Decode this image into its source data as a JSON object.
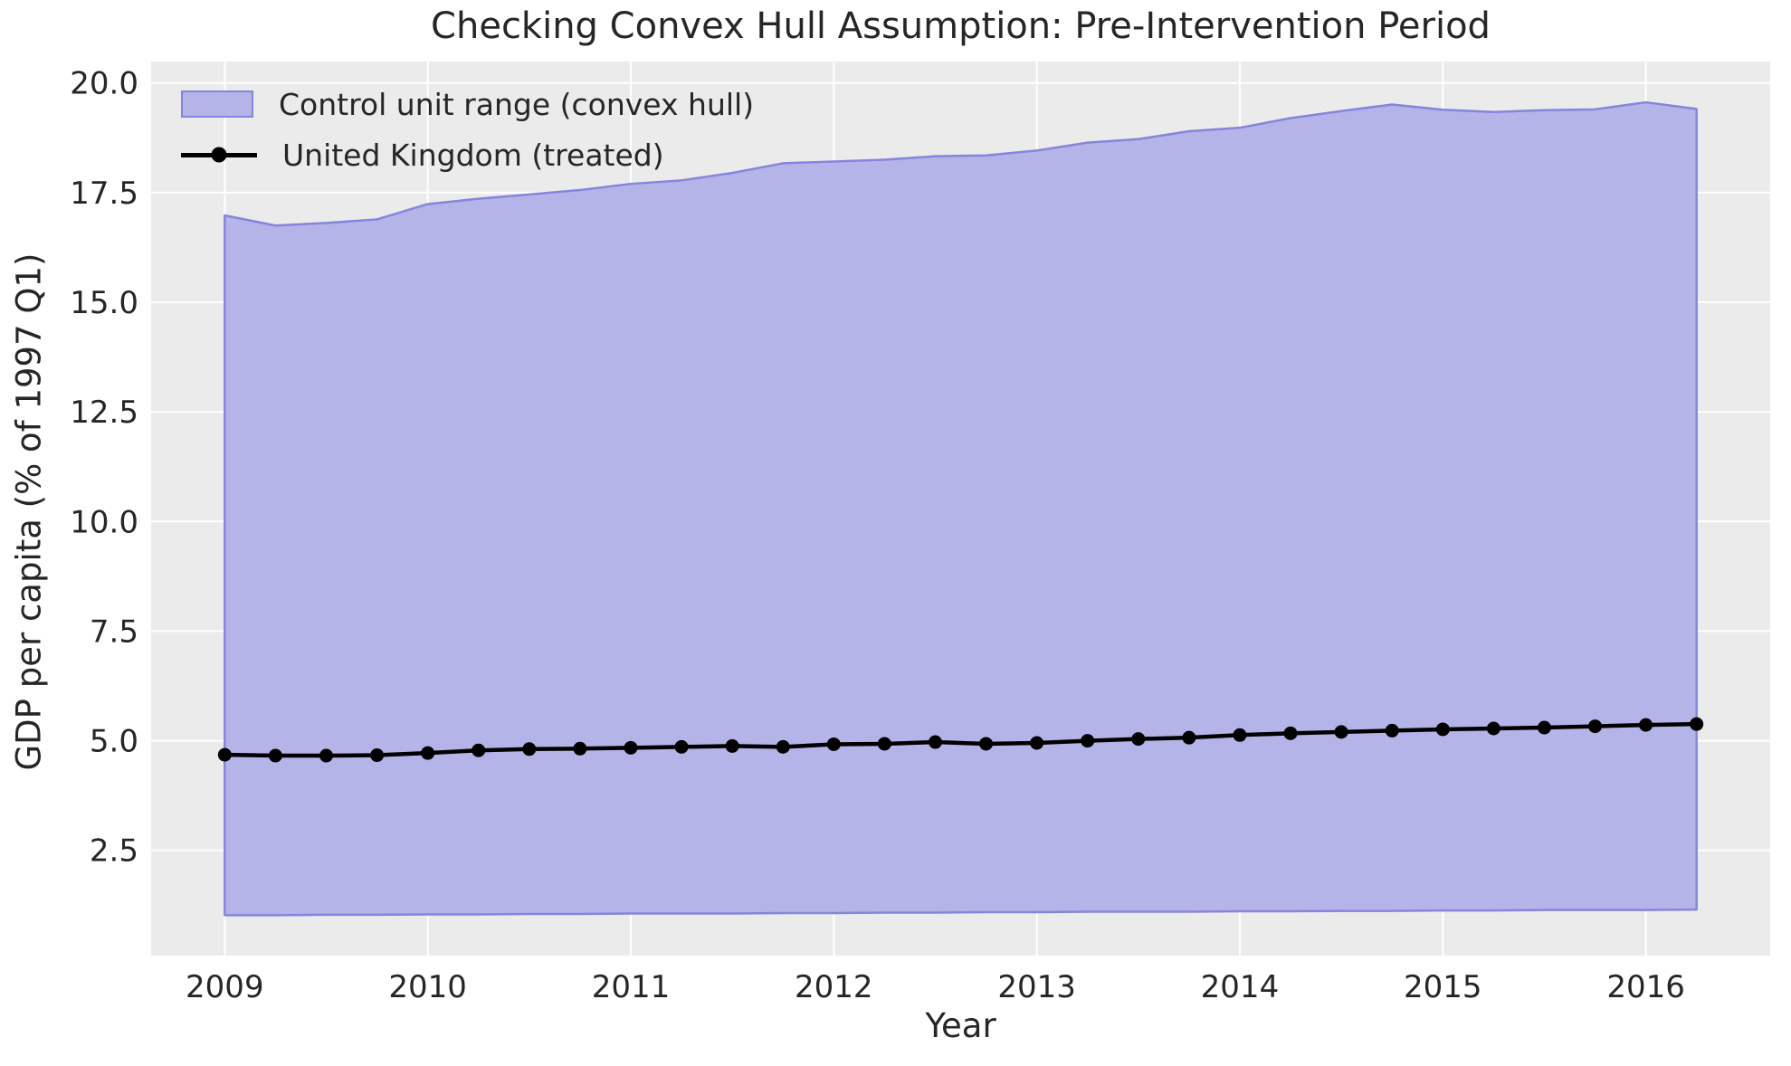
{
  "figure": {
    "title": "Checking Convex Hull Assumption: Pre-Intervention Period"
  },
  "legend": {
    "band_label": "Control unit range (convex hull)",
    "line_label": "United Kingdom (treated)"
  },
  "axes": {
    "xlabel": "Year",
    "ylabel": "GDP per capita (% of 1997 Q1)"
  },
  "colors": {
    "plot_background": "#ebebeb",
    "grid": "#ffffff",
    "band_fill": "#b4b4e9",
    "band_edge": "#8585dd",
    "treated_line": "#000000",
    "text": "#262626",
    "figure_background": "#ffffff"
  },
  "chart_data": {
    "type": "area",
    "title": "Checking Convex Hull Assumption: Pre-Intervention Period",
    "xlabel": "Year",
    "ylabel": "GDP per capita (% of 1997 Q1)",
    "xlim": [
      2008.6375,
      2016.6125
    ],
    "ylim": [
      0.1,
      20.49
    ],
    "grid": true,
    "legend_position": "upper left",
    "x": [
      2009.0,
      2009.25,
      2009.5,
      2009.75,
      2010.0,
      2010.25,
      2010.5,
      2010.75,
      2011.0,
      2011.25,
      2011.5,
      2011.75,
      2012.0,
      2012.25,
      2012.5,
      2012.75,
      2013.0,
      2013.25,
      2013.5,
      2013.75,
      2014.0,
      2014.25,
      2014.5,
      2014.75,
      2015.0,
      2015.25,
      2015.5,
      2015.75,
      2016.0,
      2016.25
    ],
    "series": [
      {
        "name": "Control unit range (convex hull)",
        "type": "band",
        "upper": [
          16.98,
          16.75,
          16.81,
          16.89,
          17.24,
          17.36,
          17.46,
          17.56,
          17.7,
          17.78,
          17.95,
          18.17,
          18.21,
          18.25,
          18.33,
          18.35,
          18.46,
          18.64,
          18.72,
          18.9,
          18.98,
          19.2,
          19.36,
          19.51,
          19.39,
          19.34,
          19.38,
          19.4,
          19.56,
          19.41
        ],
        "lower": [
          1.02,
          1.02,
          1.03,
          1.03,
          1.04,
          1.04,
          1.05,
          1.05,
          1.06,
          1.06,
          1.06,
          1.07,
          1.07,
          1.08,
          1.08,
          1.09,
          1.09,
          1.1,
          1.1,
          1.1,
          1.11,
          1.11,
          1.12,
          1.12,
          1.13,
          1.13,
          1.14,
          1.14,
          1.14,
          1.15
        ]
      },
      {
        "name": "United Kingdom (treated)",
        "type": "line",
        "values": [
          4.68,
          4.66,
          4.66,
          4.67,
          4.72,
          4.78,
          4.81,
          4.82,
          4.84,
          4.86,
          4.88,
          4.86,
          4.92,
          4.93,
          4.97,
          4.93,
          4.95,
          5.0,
          5.04,
          5.07,
          5.13,
          5.17,
          5.2,
          5.23,
          5.26,
          5.28,
          5.3,
          5.33,
          5.36,
          5.38
        ]
      }
    ],
    "xticks": {
      "values": [
        2009,
        2010,
        2011,
        2012,
        2013,
        2014,
        2015,
        2016
      ],
      "labels": [
        "2009",
        "2010",
        "2011",
        "2012",
        "2013",
        "2014",
        "2015",
        "2016"
      ]
    },
    "yticks": {
      "values": [
        2.5,
        5.0,
        7.5,
        10.0,
        12.5,
        15.0,
        17.5,
        20.0
      ],
      "labels": [
        "2.5",
        "5.0",
        "7.5",
        "10.0",
        "12.5",
        "15.0",
        "17.5",
        "20.0"
      ]
    }
  }
}
